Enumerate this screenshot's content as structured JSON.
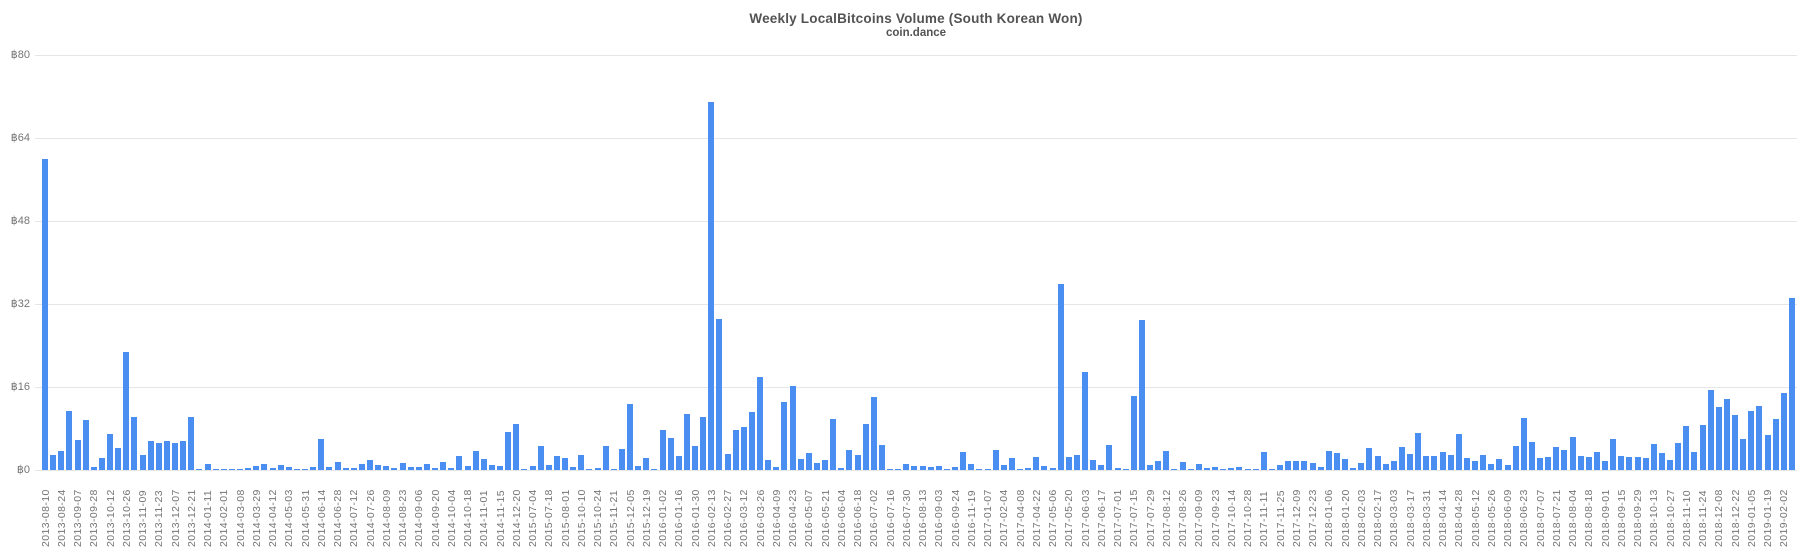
{
  "header": {
    "title": "Weekly LocalBitcoins Volume (South Korean Won)",
    "subtitle": "coin.dance"
  },
  "chart_data": {
    "type": "bar",
    "title": "Weekly LocalBitcoins Volume (South Korean Won)",
    "subtitle": "coin.dance",
    "xlabel": "",
    "ylabel": "",
    "unit": "BTC",
    "currency_prefix": "฿",
    "ylim": [
      0,
      80
    ],
    "grid": "horizontal",
    "legend_position": "none",
    "bar_color": "#4a8ef2",
    "grid_color": "#e6e6e6",
    "axis_text_color": "#757575",
    "title_color": "#535353",
    "y_ticks": [
      0,
      16,
      32,
      48,
      64,
      80
    ],
    "y_tick_labels": [
      "฿0",
      "฿16",
      "฿32",
      "฿48",
      "฿64",
      "฿80"
    ],
    "x_tick_every": 2,
    "x_tick_labels": [
      "2013-08-10",
      "2013-08-24",
      "2013-09-07",
      "2013-09-28",
      "2013-10-12",
      "2013-10-26",
      "2013-11-09",
      "2013-11-23",
      "2013-12-07",
      "2013-12-21",
      "2014-01-11",
      "2014-02-01",
      "2014-03-08",
      "2014-03-29",
      "2014-04-12",
      "2014-05-03",
      "2014-05-31",
      "2014-06-14",
      "2014-06-28",
      "2014-07-12",
      "2014-07-26",
      "2014-08-09",
      "2014-08-23",
      "2014-09-06",
      "2014-09-20",
      "2014-10-04",
      "2014-10-18",
      "2014-11-01",
      "2014-11-15",
      "2014-12-20",
      "2015-07-04",
      "2015-07-18",
      "2015-08-01",
      "2015-10-10",
      "2015-10-24",
      "2015-11-21",
      "2015-12-05",
      "2015-12-19",
      "2016-01-02",
      "2016-01-16",
      "2016-01-30",
      "2016-02-13",
      "2016-02-27",
      "2016-03-12",
      "2016-03-26",
      "2016-04-09",
      "2016-04-23",
      "2016-05-07",
      "2016-05-21",
      "2016-06-04",
      "2016-06-18",
      "2016-07-02",
      "2016-07-16",
      "2016-07-30",
      "2016-08-13",
      "2016-09-03",
      "2016-09-24",
      "2016-11-19",
      "2017-01-07",
      "2017-02-04",
      "2017-04-08",
      "2017-04-22",
      "2017-05-06",
      "2017-05-20",
      "2017-06-03",
      "2017-06-17",
      "2017-07-01",
      "2017-07-15",
      "2017-07-29",
      "2017-08-12",
      "2017-08-26",
      "2017-09-09",
      "2017-09-23",
      "2017-10-14",
      "2017-10-28",
      "2017-11-11",
      "2017-11-25",
      "2017-12-09",
      "2017-12-23",
      "2018-01-06",
      "2018-01-20",
      "2018-02-03",
      "2018-02-17",
      "2018-03-03",
      "2018-03-17",
      "2018-03-31",
      "2018-04-14",
      "2018-04-28",
      "2018-05-12",
      "2018-05-26",
      "2018-06-09",
      "2018-06-23",
      "2018-07-07",
      "2018-07-21",
      "2018-08-04",
      "2018-08-18",
      "2018-09-01",
      "2018-09-15",
      "2018-09-29",
      "2018-10-13",
      "2018-10-27",
      "2018-11-10",
      "2018-11-24",
      "2018-12-08",
      "2018-12-22",
      "2019-01-05",
      "2019-01-19",
      "2019-02-02"
    ],
    "values": [
      60,
      2.8,
      3.6,
      11.4,
      5.7,
      9.6,
      0.5,
      2.4,
      6.9,
      4.3,
      22.7,
      10.2,
      2.8,
      5.5,
      5.2,
      5.5,
      5.3,
      5.6,
      10.3,
      0.2,
      1.1,
      0.15,
      0.2,
      0.1,
      0.1,
      0.3,
      0.75,
      1.2,
      0.45,
      1.0,
      0.55,
      0.2,
      0.1,
      0.6,
      5.9,
      0.6,
      1.5,
      0.4,
      0.3,
      1.2,
      1.9,
      1.0,
      0.7,
      0.4,
      1.3,
      0.6,
      0.6,
      1.2,
      0.4,
      1.6,
      0.45,
      2.75,
      0.7,
      3.6,
      2.05,
      0.9,
      0.8,
      7.25,
      8.85,
      0.05,
      0.7,
      4.7,
      1.0,
      2.75,
      2.25,
      0.5,
      2.95,
      0.2,
      0.4,
      4.7,
      0.15,
      4.1,
      12.8,
      0.85,
      2.25,
      0.1,
      7.7,
      6.2,
      2.7,
      10.7,
      4.7,
      10.3,
      70.9,
      29.1,
      3.1,
      7.8,
      8.2,
      11.2,
      18.0,
      1.85,
      0.65,
      13.2,
      16.1,
      2.1,
      3.2,
      1.4,
      1.9,
      9.9,
      0.3,
      3.9,
      2.9,
      8.8,
      14.1,
      4.75,
      0.05,
      0.25,
      1.15,
      0.75,
      0.75,
      0.5,
      0.8,
      0.15,
      0.6,
      3.4,
      1.1,
      0.2,
      0.25,
      3.9,
      0.95,
      2.3,
      0.1,
      0.3,
      2.45,
      0.85,
      0.45,
      35.9,
      2.6,
      2.8,
      18.8,
      2.0,
      1.0,
      4.75,
      0.4,
      0.05,
      14.3,
      29.0,
      1.0,
      1.75,
      3.7,
      0.1,
      1.55,
      0.1,
      1.1,
      0.45,
      0.6,
      0.15,
      0.4,
      0.5,
      0.05,
      0.1,
      3.4,
      0.2,
      0.95,
      1.8,
      1.8,
      1.75,
      1.4,
      0.55,
      3.65,
      3.2,
      2.2,
      0.4,
      1.35,
      4.3,
      2.7,
      1.2,
      1.65,
      4.4,
      3.0,
      7.05,
      2.75,
      2.75,
      3.5,
      2.95,
      7.0,
      2.3,
      1.8,
      2.95,
      1.15,
      2.05,
      0.9,
      4.55,
      10.0,
      5.4,
      2.25,
      2.5,
      4.5,
      3.8,
      6.3,
      2.75,
      2.55,
      3.45,
      1.75,
      5.9,
      2.7,
      2.45,
      2.5,
      2.3,
      5.0,
      3.3,
      1.9,
      5.3,
      8.5,
      3.5,
      8.6,
      15.5,
      12.1,
      13.7,
      10.6,
      5.9,
      11.4,
      12.4,
      6.8,
      9.75,
      14.8,
      33.2
    ]
  }
}
